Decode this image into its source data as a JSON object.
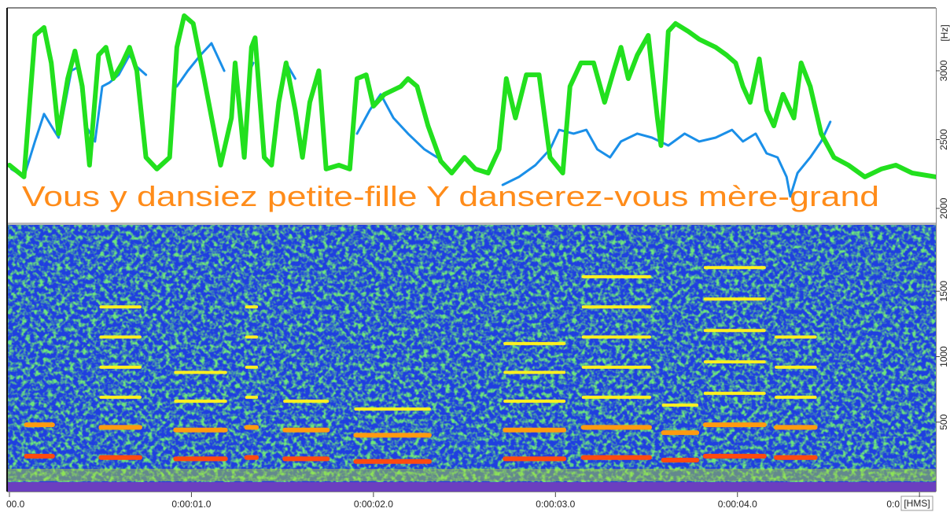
{
  "chart_data": [
    {
      "type": "line",
      "text": "Vous y dansiez petite-fille Y danserez-vous mère-grand",
      "y_label": "[Hz]",
      "xlim": [
        0,
        5.09
      ],
      "ylim": [
        1897,
        3457
      ],
      "yticks": [
        2000,
        2500,
        3000
      ],
      "series": [
        {
          "color": "#1a8fe8",
          "x": [
            0.01,
            0.08,
            0.14,
            0.19,
            0.23,
            0.27,
            0.34,
            0.38,
            0.42,
            0.47,
            0.51,
            0.55,
            0.6,
            0.66,
            0.7,
            0.75,
            0.85,
            0.92,
            0.98,
            1.05,
            1.11,
            1.18,
            1.25,
            1.32,
            1.34,
            1.45,
            1.52,
            1.57,
            1.75,
            1.91,
            1.98,
            2.04,
            2.11,
            2.19,
            2.28,
            2.35,
            2.6,
            2.71,
            2.8,
            2.89,
            2.97,
            3.02,
            3.1,
            3.17,
            3.23,
            3.3,
            3.36,
            3.45,
            3.53,
            3.62,
            3.71,
            3.79,
            3.88,
            3.97,
            4.03,
            4.1,
            4.16,
            4.22,
            4.27,
            4.29,
            4.33,
            4.4,
            4.46,
            4.51
          ],
          "values": [
            2286,
            2229,
            2486,
            2686,
            2600,
            2514,
            3000,
            3029,
            2600,
            2486,
            2886,
            2914,
            2971,
            3114,
            3029,
            2971,
            null,
            2886,
            3000,
            3114,
            3200,
            3000,
            null,
            3000,
            3057,
            null,
            3057,
            2943,
            null,
            2543,
            2714,
            2829,
            2657,
            2543,
            2429,
            2371,
            null,
            2171,
            2229,
            2314,
            2429,
            2571,
            2543,
            2571,
            2429,
            2371,
            2486,
            2543,
            2514,
            2457,
            2543,
            2486,
            2514,
            2571,
            2486,
            2543,
            2400,
            2371,
            2229,
            2086,
            2257,
            2371,
            2486,
            2629
          ]
        },
        {
          "color": "#22e01e",
          "x": [
            0.0,
            0.08,
            0.14,
            0.19,
            0.23,
            0.27,
            0.32,
            0.36,
            0.4,
            0.44,
            0.49,
            0.53,
            0.57,
            0.62,
            0.66,
            0.7,
            0.75,
            0.81,
            0.88,
            0.92,
            0.96,
            1.01,
            1.07,
            1.16,
            1.22,
            1.24,
            1.29,
            1.33,
            1.35,
            1.4,
            1.44,
            1.48,
            1.52,
            1.57,
            1.61,
            1.65,
            1.7,
            1.74,
            1.81,
            1.87,
            1.91,
            1.96,
            2.0,
            2.06,
            2.15,
            2.19,
            2.24,
            2.3,
            2.37,
            2.43,
            2.5,
            2.56,
            2.63,
            2.69,
            2.73,
            2.78,
            2.84,
            2.91,
            2.97,
            3.04,
            3.08,
            3.14,
            3.21,
            3.27,
            3.32,
            3.36,
            3.4,
            3.45,
            3.51,
            3.56,
            3.58,
            3.62,
            3.66,
            3.73,
            3.79,
            3.88,
            3.94,
            3.99,
            4.03,
            4.07,
            4.12,
            4.16,
            4.2,
            4.25,
            4.31,
            4.35,
            4.4,
            4.46,
            4.53,
            4.61,
            4.7,
            4.79,
            4.87,
            4.96,
            5.09
          ],
          "values": [
            2314,
            2229,
            3257,
            3314,
            3057,
            2543,
            2943,
            3143,
            2886,
            2314,
            3114,
            3171,
            2943,
            3057,
            3171,
            3000,
            2371,
            2286,
            2371,
            3171,
            3400,
            3343,
            2943,
            2314,
            2657,
            3057,
            2371,
            3171,
            3240,
            2371,
            2314,
            2771,
            3057,
            2714,
            2371,
            2771,
            3000,
            2286,
            2314,
            2286,
            2943,
            2971,
            2743,
            2829,
            2886,
            2943,
            2886,
            2600,
            2343,
            2257,
            2371,
            2286,
            2257,
            2429,
            2943,
            2657,
            2971,
            2971,
            2371,
            2257,
            2886,
            3057,
            3057,
            2771,
            3000,
            3171,
            2943,
            3114,
            3257,
            2657,
            2457,
            3286,
            3343,
            3286,
            3229,
            3171,
            3114,
            3057,
            2886,
            2771,
            3086,
            2714,
            2600,
            2829,
            2657,
            3057,
            2886,
            2543,
            2371,
            2314,
            2229,
            2286,
            2314,
            2257,
            2229
          ]
        }
      ]
    },
    {
      "type": "spectrogram",
      "x_label": "[HMS]",
      "xlim": [
        0,
        5.09
      ],
      "ylim": [
        0,
        2000
      ],
      "yticks": [
        500,
        1000,
        1500
      ],
      "xticks": [
        {
          "value": 0,
          "label": "00.0"
        },
        {
          "value": 1,
          "label": "0:00:01.0"
        },
        {
          "value": 2,
          "label": "0:00:02.0"
        },
        {
          "value": 3,
          "label": "0:00:03.0"
        },
        {
          "value": 4,
          "label": "0:00:04.0"
        },
        {
          "value": 5,
          "label": "0:0"
        }
      ],
      "segments": {
        "start": [
          0.08,
          0.49,
          0.9,
          1.29,
          1.5,
          1.89,
          2.71,
          3.14,
          3.58,
          3.81,
          4.2
        ],
        "end": [
          0.25,
          0.73,
          1.2,
          1.37,
          1.76,
          2.32,
          3.06,
          3.53,
          3.79,
          4.16,
          4.44
        ],
        "f0": [
          240,
          230,
          220,
          230,
          220,
          200,
          220,
          230,
          210,
          240,
          230
        ],
        "max": [
          600,
          1600,
          900,
          1500,
          800,
          600,
          1300,
          1800,
          700,
          1800,
          1200
        ]
      }
    }
  ]
}
